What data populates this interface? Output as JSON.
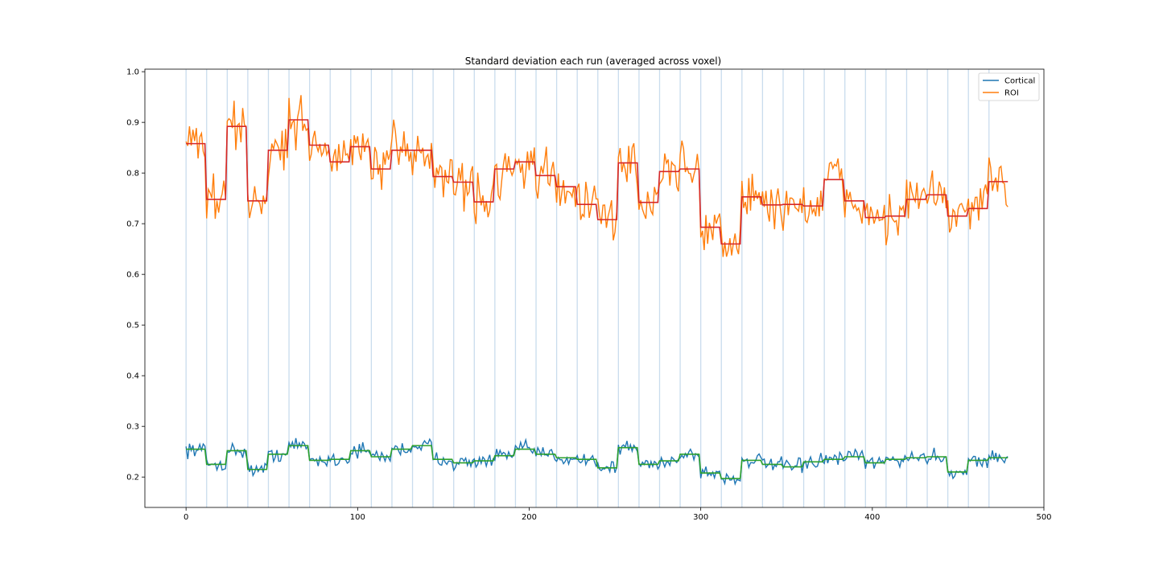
{
  "chart_data": {
    "type": "line",
    "title": "Standard deviation each run (averaged across voxel)",
    "xlabel": "",
    "ylabel": "",
    "xlim": [
      -24,
      500
    ],
    "ylim": [
      0.14,
      1.005
    ],
    "x_ticks": [
      0,
      100,
      200,
      300,
      400,
      500
    ],
    "y_ticks": [
      0.2,
      0.3,
      0.4,
      0.5,
      0.6,
      0.7,
      0.8,
      0.9,
      1.0
    ],
    "x_tick_labels": [
      "0",
      "100",
      "200",
      "300",
      "400",
      "500"
    ],
    "y_tick_labels": [
      "0.2",
      "0.3",
      "0.4",
      "0.5",
      "0.6",
      "0.7",
      "0.8",
      "0.9",
      "1.0"
    ],
    "grid": false,
    "legend_position": "top-right",
    "run_boundaries": [
      0,
      12,
      24,
      36,
      48,
      60,
      72,
      84,
      96,
      108,
      120,
      132,
      144,
      156,
      168,
      180,
      192,
      204,
      216,
      228,
      240,
      252,
      264,
      276,
      288,
      300,
      312,
      324,
      336,
      348,
      360,
      372,
      384,
      396,
      408,
      420,
      432,
      444,
      456,
      468
    ],
    "points_per_run": 12,
    "total_points": 480,
    "series": [
      {
        "name": "Cortical",
        "color": "#1f77b4",
        "kind": "raw",
        "run_means": [
          0.255,
          0.225,
          0.252,
          0.215,
          0.245,
          0.262,
          0.233,
          0.235,
          0.252,
          0.24,
          0.255,
          0.262,
          0.235,
          0.228,
          0.232,
          0.242,
          0.255,
          0.245,
          0.238,
          0.235,
          0.218,
          0.258,
          0.225,
          0.232,
          0.245,
          0.208,
          0.197,
          0.233,
          0.225,
          0.22,
          0.23,
          0.235,
          0.24,
          0.228,
          0.235,
          0.238,
          0.24,
          0.21,
          0.233,
          0.238
        ],
        "amplitude": 0.01
      },
      {
        "name": "ROI",
        "color": "#ff7f0e",
        "kind": "raw",
        "run_means": [
          0.858,
          0.748,
          0.892,
          0.745,
          0.845,
          0.905,
          0.855,
          0.822,
          0.852,
          0.808,
          0.845,
          0.845,
          0.793,
          0.782,
          0.743,
          0.808,
          0.822,
          0.795,
          0.773,
          0.738,
          0.708,
          0.82,
          0.742,
          0.803,
          0.808,
          0.693,
          0.66,
          0.753,
          0.737,
          0.738,
          0.735,
          0.787,
          0.745,
          0.712,
          0.715,
          0.748,
          0.757,
          0.715,
          0.73,
          0.783
        ],
        "amplitude": 0.035
      },
      {
        "name": "",
        "color": "#2ca02c",
        "kind": "run-mean",
        "source": "Cortical"
      },
      {
        "name": "",
        "color": "#d62728",
        "kind": "run-mean",
        "source": "ROI"
      }
    ]
  }
}
